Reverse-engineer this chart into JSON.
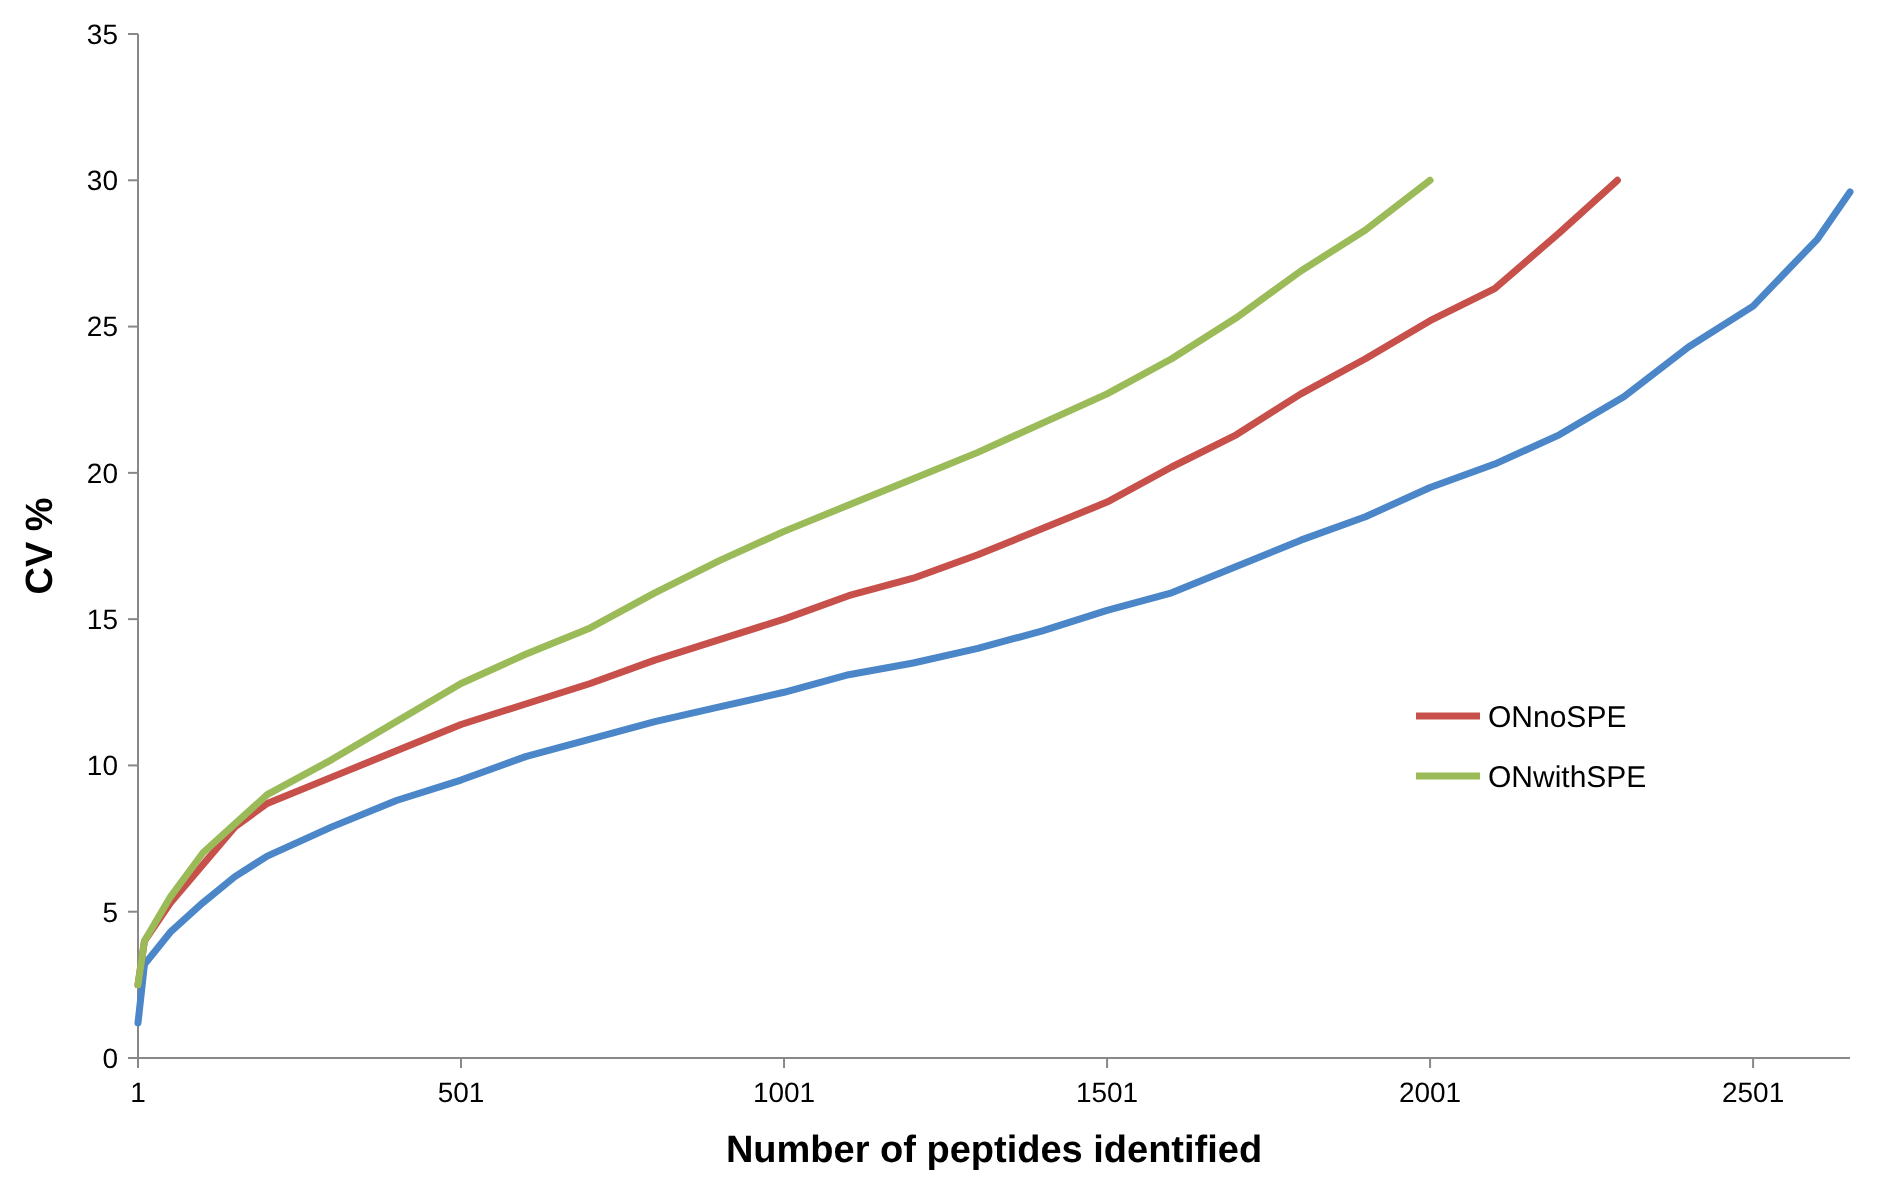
{
  "chart_data": {
    "type": "line",
    "xlabel": "Number of peptides identified",
    "ylabel": "CV %",
    "xlim": [
      1,
      2651
    ],
    "xticks": [
      1,
      501,
      1001,
      1501,
      2001,
      2501
    ],
    "ylim": [
      0,
      35
    ],
    "yticks": [
      0,
      5,
      10,
      15,
      20,
      25,
      30,
      35
    ],
    "grid": false,
    "legend": "right",
    "marker": "none",
    "line_style": "solid",
    "series": [
      {
        "color": "#4a86c8",
        "x": [
          1,
          11,
          51,
          101,
          151,
          201,
          301,
          401,
          501,
          601,
          701,
          801,
          901,
          1001,
          1101,
          1201,
          1301,
          1401,
          1501,
          1601,
          1701,
          1801,
          1901,
          2001,
          2101,
          2201,
          2301,
          2401,
          2501,
          2601,
          2651
        ],
        "values": [
          1.2,
          3.2,
          4.3,
          5.3,
          6.2,
          6.9,
          7.9,
          8.8,
          9.5,
          10.3,
          10.9,
          11.5,
          12,
          12.5,
          13.1,
          13.5,
          14,
          14.6,
          15.3,
          15.9,
          16.8,
          17.7,
          18.5,
          19.5,
          20.3,
          21.3,
          22.6,
          24.3,
          25.7,
          28,
          29.6
        ]
      },
      {
        "name": "ONnoSPE",
        "color": "#c8504b",
        "x": [
          1,
          11,
          51,
          101,
          151,
          201,
          301,
          401,
          501,
          601,
          701,
          801,
          901,
          1001,
          1101,
          1201,
          1301,
          1401,
          1501,
          1601,
          1701,
          1801,
          1901,
          2001,
          2101,
          2201,
          2291
        ],
        "values": [
          2.5,
          4,
          5.3,
          6.6,
          7.9,
          8.7,
          9.6,
          10.5,
          11.4,
          12.1,
          12.8,
          13.6,
          14.3,
          15,
          15.8,
          16.4,
          17.2,
          18.1,
          19,
          20.2,
          21.3,
          22.7,
          23.9,
          25.2,
          26.3,
          28.2,
          30
        ]
      },
      {
        "name": "ONwithSPE",
        "color": "#9bbb59",
        "x": [
          1,
          11,
          51,
          101,
          151,
          201,
          301,
          401,
          501,
          601,
          701,
          801,
          901,
          1001,
          1101,
          1201,
          1301,
          1401,
          1501,
          1601,
          1701,
          1801,
          1901,
          2001
        ],
        "values": [
          2.5,
          4,
          5.5,
          7,
          8,
          9,
          10.2,
          11.5,
          12.8,
          13.8,
          14.7,
          15.9,
          17,
          18,
          18.9,
          19.8,
          20.7,
          21.7,
          22.7,
          23.9,
          25.3,
          26.9,
          28.3,
          30
        ]
      }
    ]
  }
}
